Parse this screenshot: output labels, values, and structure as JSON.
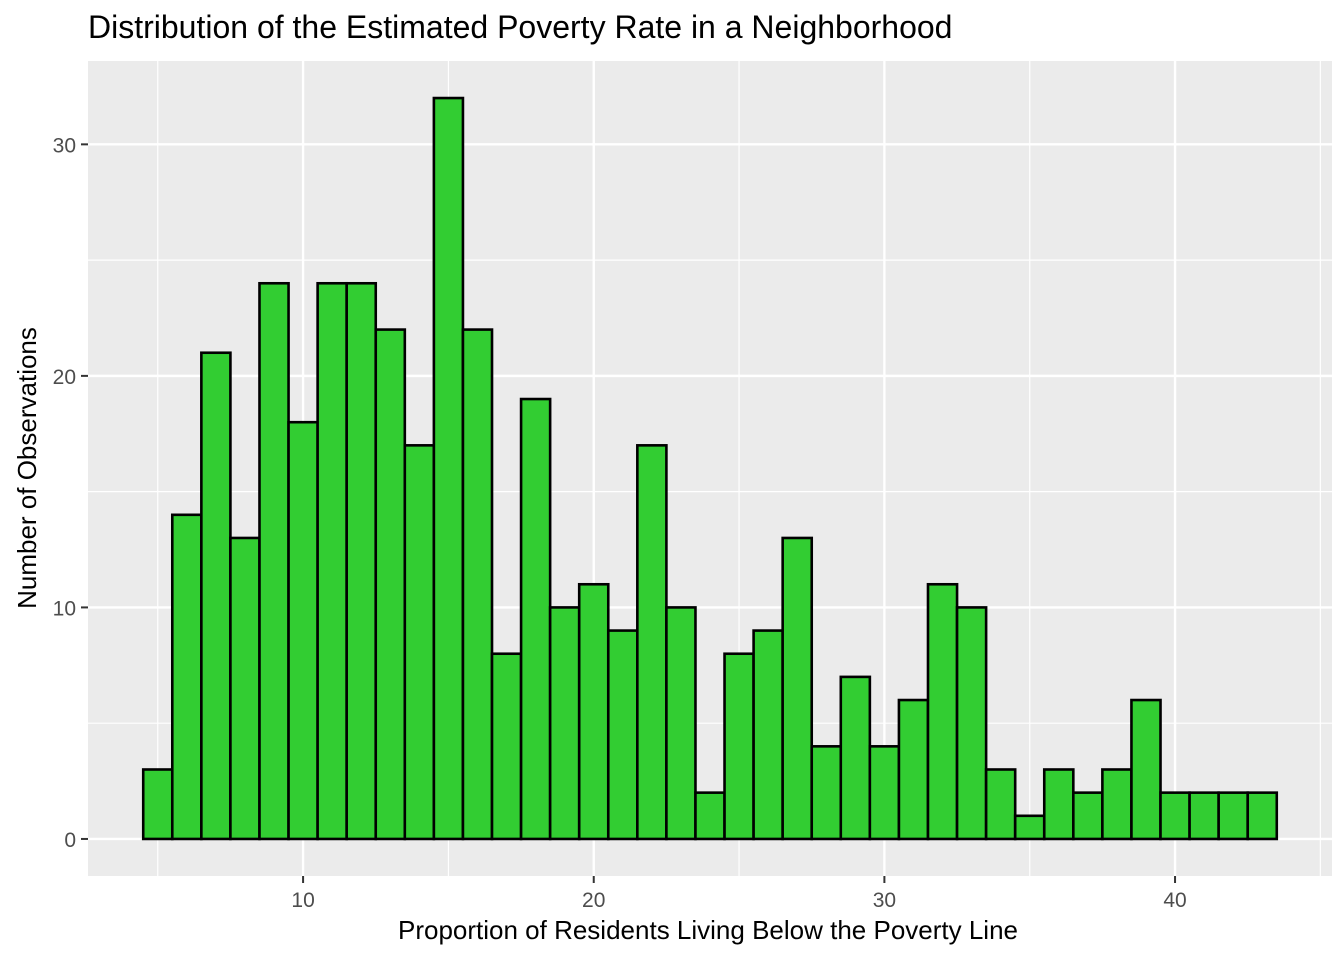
{
  "chart_data": {
    "type": "bar",
    "title": "Distribution of the Estimated Poverty Rate in a Neighborhood",
    "xlabel": "Proportion of Residents Living Below the Poverty Line",
    "ylabel": "Number of Observations",
    "x": [
      5,
      6,
      7,
      8,
      9,
      10,
      11,
      12,
      13,
      14,
      15,
      16,
      17,
      18,
      19,
      20,
      21,
      22,
      23,
      24,
      25,
      26,
      27,
      28,
      29,
      30,
      31,
      32,
      33,
      34,
      35,
      36,
      37,
      38,
      39,
      40,
      41,
      42,
      43
    ],
    "values": [
      3,
      14,
      21,
      13,
      24,
      18,
      24,
      24,
      22,
      17,
      32,
      22,
      8,
      19,
      10,
      11,
      9,
      17,
      10,
      2,
      8,
      9,
      13,
      4,
      7,
      4,
      6,
      11,
      10,
      3,
      1,
      3,
      2,
      3,
      6,
      2,
      2,
      2,
      2
    ],
    "bin_width": 1,
    "xlim": [
      2.6,
      45.4
    ],
    "ylim": [
      -1.6,
      33.6
    ],
    "x_ticks": [
      10,
      20,
      30,
      40
    ],
    "y_ticks": [
      0,
      10,
      20,
      30
    ],
    "grid": true,
    "colors": {
      "bar_fill": "#32CD32",
      "bar_outline": "#000000",
      "panel_background": "#EBEBEB",
      "grid_line": "#FFFFFF"
    }
  }
}
